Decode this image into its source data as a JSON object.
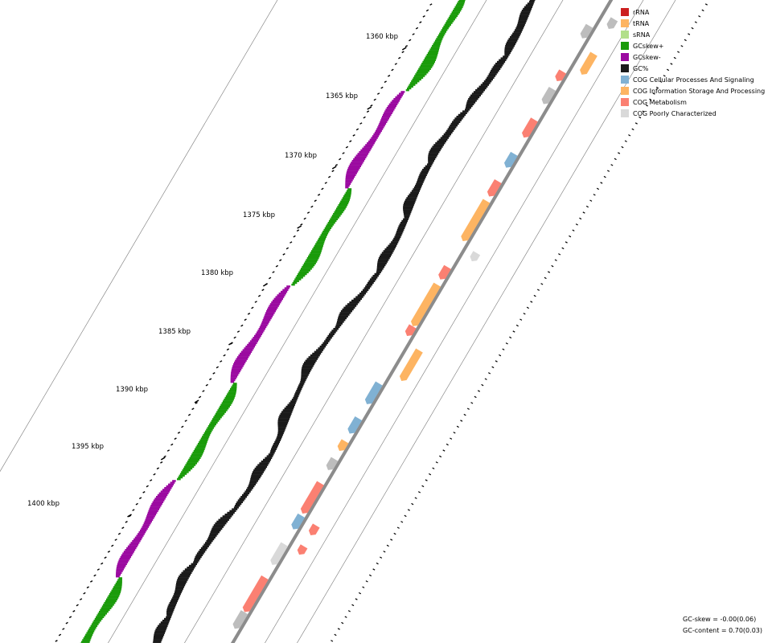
{
  "legend": [
    {
      "label": "rRNA",
      "color": "#cc1f1f"
    },
    {
      "label": "tRNA",
      "color": "#fdb462"
    },
    {
      "label": "sRNA",
      "color": "#b2df8a"
    },
    {
      "label": "GCskew+",
      "color": "#1a9b0a"
    },
    {
      "label": "GCskew-",
      "color": "#9b0aa0"
    },
    {
      "label": "GC%",
      "color": "#1a1a1a"
    },
    {
      "label": "COG Cellular Processes And Signaling",
      "color": "#80b1d3"
    },
    {
      "label": "COG Information Storage And Processing",
      "color": "#fdb462"
    },
    {
      "label": "COG Metabolism",
      "color": "#fb8072"
    },
    {
      "label": "COG Poorly Characterized",
      "color": "#d9d9d9"
    }
  ],
  "ticks": [
    "1360 kbp",
    "1365 kbp",
    "1370 kbp",
    "1375 kbp",
    "1380 kbp",
    "1385 kbp",
    "1390 kbp",
    "1395 kbp",
    "1400 kbp"
  ],
  "stats": {
    "gc_skew": "GC-skew = -0.00(0.06)",
    "gc_content": "GC-content = 0.70(0.03)"
  }
}
